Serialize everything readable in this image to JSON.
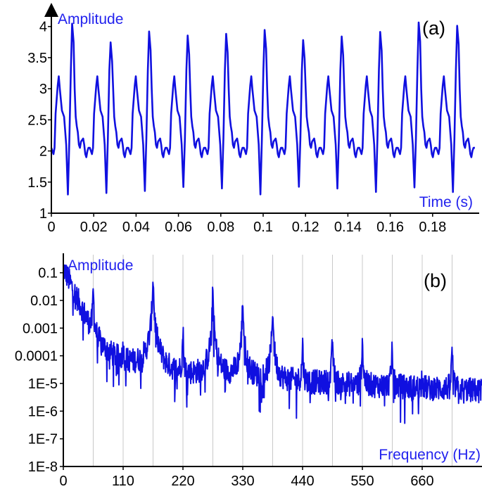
{
  "colors": {
    "signal": "#1010e0",
    "label": "#2222ee",
    "axis": "#000000",
    "grid": "#c8c8c8"
  },
  "chart_data": [
    {
      "type": "line",
      "panel_label": "(a)",
      "ylabel": "Amplitude",
      "xlabel": "Time (s)",
      "xlim": [
        0,
        0.2
      ],
      "ylim": [
        1,
        4.2
      ],
      "x_tick_labels": [
        "0",
        "0.02",
        "0.04",
        "0.06",
        "0.08",
        "0.1",
        "0.12",
        "0.14",
        "0.16",
        "0.18"
      ],
      "y_tick_labels": [
        "1",
        "1.5",
        "2",
        "2.5",
        "3",
        "3.5",
        "4"
      ],
      "grid": false,
      "period_s": 0.01818,
      "series": [
        {
          "x": [
            0.0,
            0.0005,
            0.001,
            0.0015,
            0.002,
            0.003,
            0.0035,
            0.004,
            0.005,
            0.006,
            0.007,
            0.0078,
            0.0085,
            0.0092,
            0.0098,
            0.0105,
            0.011,
            0.0115,
            0.012,
            0.0125,
            0.013,
            0.0135,
            0.014,
            0.015,
            0.0155,
            0.016,
            0.0165,
            0.017,
            0.0175,
            0.018,
            0.0182
          ],
          "values": [
            2.05,
            2.0,
            1.95,
            2.05,
            2.6,
            3.05,
            3.2,
            3.0,
            2.65,
            2.55,
            2.1,
            1.35,
            2.2,
            3.3,
            3.9,
            3.6,
            3.0,
            2.55,
            2.4,
            2.3,
            2.1,
            2.05,
            2.15,
            2.2,
            2.1,
            1.95,
            1.9,
            2.0,
            2.05,
            2.05,
            2.05
          ]
        }
      ]
    },
    {
      "type": "line",
      "panel_label": "(b)",
      "ylabel": "Amplitude",
      "xlabel": "Frequency (Hz)",
      "xlim": [
        0,
        770
      ],
      "ylim": [
        1e-08,
        0.25
      ],
      "y_scale": "log",
      "grid": "vertical",
      "x_tick_labels": [
        "0",
        "110",
        "220",
        "330",
        "440",
        "550",
        "660"
      ],
      "y_tick_labels": [
        "0.1",
        "0.01",
        "0.001",
        "0.0001",
        "1E-5",
        "1E-6",
        "1E-7",
        "1E-8"
      ],
      "harmonic_spacing_hz": 55,
      "series": [
        {
          "x": [
            0,
            55,
            110,
            165,
            220,
            275,
            330,
            385,
            440,
            495,
            550,
            605,
            660,
            715
          ],
          "values": [
            0.2,
            0.025,
            0.00025,
            0.08,
            0.0008,
            0.022,
            0.012,
            0.006,
            0.0003,
            0.0005,
            0.0004,
            0.0003,
            3e-05,
            0.0002
          ]
        }
      ]
    }
  ]
}
